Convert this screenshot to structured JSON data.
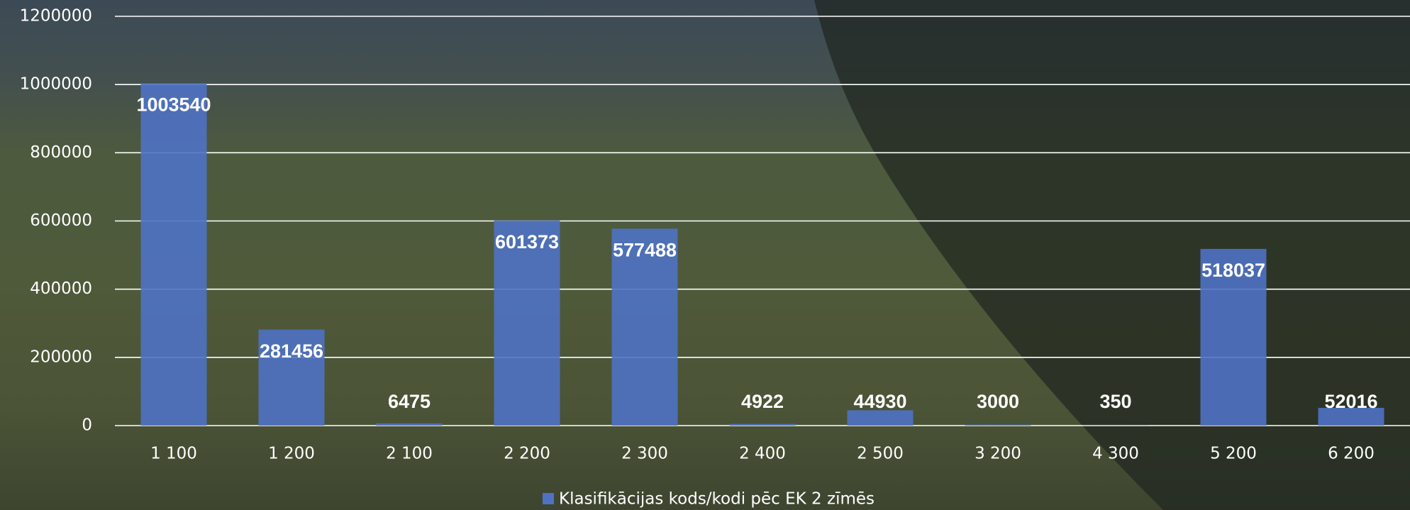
{
  "chart_data": {
    "type": "bar",
    "categories": [
      "1 100",
      "1 200",
      "2 100",
      "2 200",
      "2 300",
      "2 400",
      "2 500",
      "3 200",
      "4 300",
      "5 200",
      "6 200"
    ],
    "series": [
      {
        "name": "Klasifikācijas kods/kodi pēc EK 2 zīmēs",
        "color": "#4f72c4",
        "values": [
          1003540,
          281456,
          6475,
          601373,
          577488,
          4922,
          44930,
          3000,
          350,
          518037,
          52016
        ]
      }
    ],
    "ylim": [
      0,
      1200000
    ],
    "yticks": [
      0,
      200000,
      400000,
      600000,
      800000,
      1000000,
      1200000
    ],
    "grid": true,
    "legend": "bottom"
  }
}
